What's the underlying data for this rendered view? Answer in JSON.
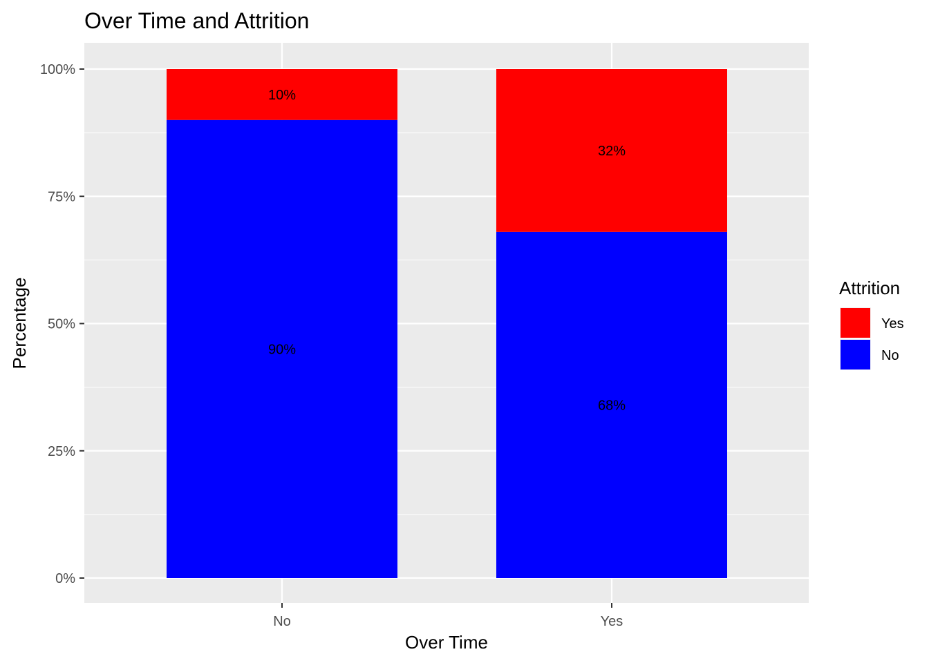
{
  "chart_data": {
    "type": "bar",
    "stacked": true,
    "title": "Over Time and Attrition",
    "xlabel": "Over Time",
    "ylabel": "Percentage",
    "categories": [
      "No",
      "Yes"
    ],
    "series": [
      {
        "name": "No",
        "color": "#0000ff",
        "values": [
          90,
          68
        ],
        "labels": [
          "90%",
          "68%"
        ]
      },
      {
        "name": "Yes",
        "color": "#ff0000",
        "values": [
          10,
          32
        ],
        "labels": [
          "10%",
          "32%"
        ]
      }
    ],
    "ylim": [
      0,
      100
    ],
    "yticks": [
      0,
      25,
      50,
      75,
      100
    ],
    "ytick_labels": [
      "0%",
      "25%",
      "50%",
      "75%",
      "100%"
    ],
    "grid": true,
    "panel_background": "#ebebeb",
    "legend": {
      "title": "Attrition",
      "position": "right",
      "entries": [
        {
          "label": "Yes",
          "color": "#ff0000"
        },
        {
          "label": "No",
          "color": "#0000ff"
        }
      ]
    }
  }
}
